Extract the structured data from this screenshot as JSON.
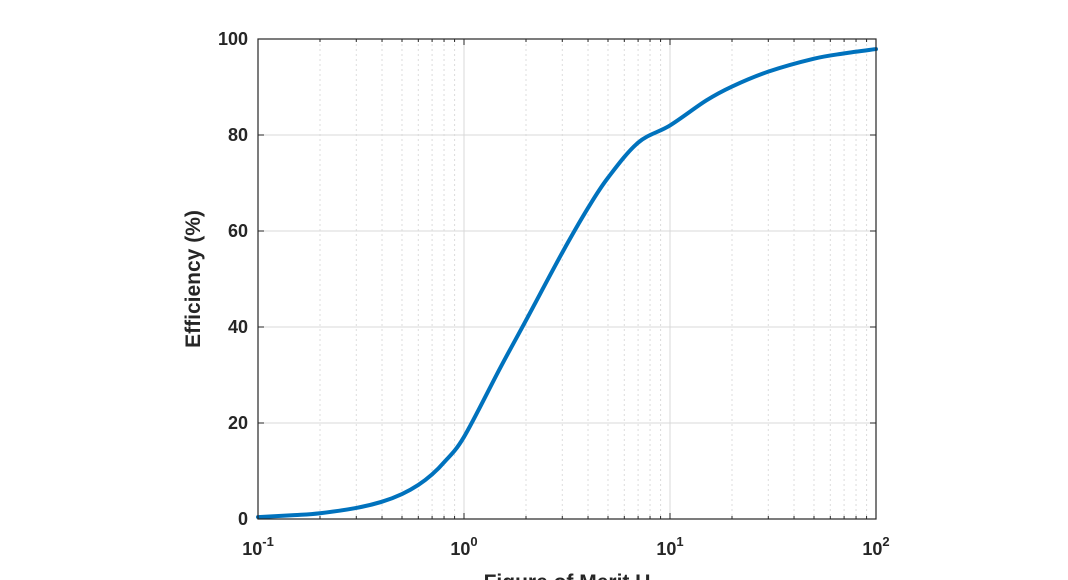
{
  "chart_data": {
    "type": "line",
    "title": "",
    "xlabel": "Figure of Merit U",
    "ylabel": "Efficiency (%)",
    "xscale": "log",
    "xlim": [
      0.1,
      100
    ],
    "ylim": [
      0,
      100
    ],
    "grid": true,
    "minor_grid": true,
    "line_color": "#0072BD",
    "x_ticks": [
      {
        "value": 0.1,
        "base": "10",
        "exp": "-1"
      },
      {
        "value": 1,
        "base": "10",
        "exp": "0"
      },
      {
        "value": 10,
        "base": "10",
        "exp": "1"
      },
      {
        "value": 100,
        "base": "10",
        "exp": "2"
      }
    ],
    "y_ticks": [
      0,
      20,
      40,
      60,
      80,
      100
    ],
    "series": [
      {
        "x": [
          0.1,
          0.15,
          0.2,
          0.3,
          0.4,
          0.5,
          0.6,
          0.7,
          0.8,
          1,
          1.5,
          2,
          3,
          4,
          5,
          7,
          10,
          15,
          20,
          30,
          50,
          70,
          100
        ],
        "y": [
          0.4,
          0.8,
          1.2,
          2.3,
          3.6,
          5.2,
          7.1,
          9.3,
          11.8,
          17.1,
          31.5,
          41.4,
          55.5,
          64.8,
          71.1,
          78.4,
          82.0,
          87.2,
          90.1,
          93.2,
          95.9,
          97.0,
          97.9
        ]
      }
    ]
  }
}
